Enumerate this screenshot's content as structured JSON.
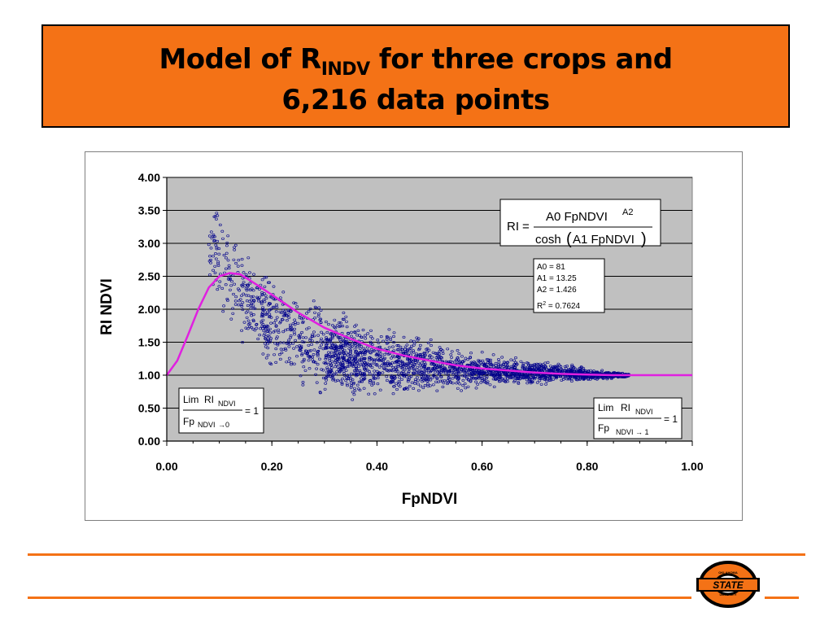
{
  "slide": {
    "title_line1_pre": "Model of R",
    "title_line1_sub": "INDV",
    "title_line1_post": " for three crops and",
    "title_line2": "6,216 data points"
  },
  "colors": {
    "title_background": "#f47216",
    "plot_background": "#c0c0c0",
    "points": "#00008b",
    "model_curve": "#e020e0",
    "rule": "#f47216"
  },
  "chart_data": {
    "type": "scatter",
    "xlabel": "FpNDVI",
    "ylabel": "RI NDVI",
    "xlim": [
      0,
      1
    ],
    "ylim": [
      0,
      4
    ],
    "x_ticks": [
      "0.00",
      "0.20",
      "0.40",
      "0.60",
      "0.80",
      "1.00"
    ],
    "y_ticks": [
      "0.00",
      "0.50",
      "1.00",
      "1.50",
      "2.00",
      "2.50",
      "3.00",
      "3.50",
      "4.00"
    ],
    "grid": "horizontal",
    "point_count": 6216,
    "model": {
      "equation": {
        "lhs": "RI",
        "equals": "=",
        "numerator": "A0 FpNDVI",
        "numerator_sup": "A2",
        "denominator_func": "cosh",
        "denominator_arg": "A1 FpNDVI"
      },
      "params": {
        "A0": 81,
        "A1": 13.25,
        "A2": 1.426
      },
      "r2": 0.7624,
      "param_lines": [
        "A0 = 81",
        "A1 = 13.25",
        "A2 = 1.426"
      ],
      "r2_prefix": "R",
      "r2_sup": "2",
      "r2_suffix": " = 0.7624",
      "curve_points": [
        [
          0,
          1.0
        ],
        [
          0.02,
          1.22
        ],
        [
          0.04,
          1.6
        ],
        [
          0.06,
          2.0
        ],
        [
          0.08,
          2.33
        ],
        [
          0.1,
          2.5
        ],
        [
          0.12,
          2.55
        ],
        [
          0.14,
          2.53
        ],
        [
          0.16,
          2.43
        ],
        [
          0.2,
          2.22
        ],
        [
          0.25,
          1.95
        ],
        [
          0.3,
          1.72
        ],
        [
          0.35,
          1.55
        ],
        [
          0.4,
          1.4
        ],
        [
          0.45,
          1.3
        ],
        [
          0.5,
          1.22
        ],
        [
          0.55,
          1.15
        ],
        [
          0.6,
          1.1
        ],
        [
          0.65,
          1.07
        ],
        [
          0.7,
          1.04
        ],
        [
          0.75,
          1.02
        ],
        [
          0.8,
          1.01
        ],
        [
          0.85,
          1.0
        ],
        [
          0.9,
          1.0
        ],
        [
          1.0,
          1.0
        ]
      ],
      "envelope": {
        "x": [
          0.08,
          0.1,
          0.12,
          0.15,
          0.18,
          0.2,
          0.25,
          0.3,
          0.35,
          0.4,
          0.45,
          0.5,
          0.55,
          0.6,
          0.65,
          0.7,
          0.75,
          0.8,
          0.85,
          0.88
        ],
        "lo": [
          2.2,
          1.9,
          1.6,
          1.4,
          1.2,
          1.0,
          0.75,
          0.6,
          0.55,
          0.6,
          0.65,
          0.7,
          0.75,
          0.8,
          0.82,
          0.85,
          0.88,
          0.9,
          0.95,
          0.97
        ],
        "hi": [
          3.75,
          3.7,
          3.5,
          2.9,
          2.75,
          2.6,
          2.3,
          2.1,
          1.9,
          1.8,
          1.7,
          1.55,
          1.45,
          1.35,
          1.3,
          1.25,
          1.2,
          1.12,
          1.05,
          1.02
        ]
      }
    },
    "annotations": {
      "limit_low": {
        "lim": "Lim",
        "ri": "RI",
        "ri_sub": "NDVI",
        "eq": "= 1",
        "fp": "Fp",
        "fp_sub": "NDVI",
        "arrow": "→0"
      },
      "limit_high": {
        "lim": "Lim",
        "ri": "RI",
        "ri_sub": "NDVI",
        "eq": "= 1",
        "fp": "Fp",
        "fp_sub": "NDVI",
        "arrow": "→ 1"
      }
    }
  },
  "logo": {
    "brand_word": "STATE",
    "arc_text": "OKLAHOMA",
    "sub_text": "UNIVERSITY"
  }
}
